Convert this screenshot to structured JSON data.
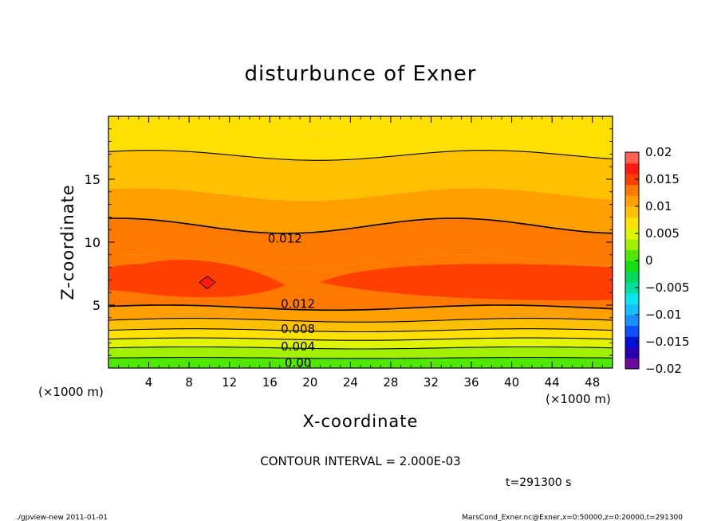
{
  "chart_data": {
    "type": "heatmap",
    "title": "disturbunce of Exner",
    "xlabel": "X-coordinate",
    "ylabel": "Z-coordinate",
    "x_unit_left": "(×1000 m)",
    "x_unit_right": "(×1000 m)",
    "xlim": [
      0,
      50
    ],
    "ylim": [
      0,
      20
    ],
    "x_ticks": [
      4,
      8,
      12,
      16,
      20,
      24,
      28,
      32,
      36,
      40,
      44,
      48
    ],
    "x_tick_labels": [
      "4",
      "8",
      "12",
      "16",
      "20",
      "24",
      "28",
      "32",
      "36",
      "40",
      "44",
      "48"
    ],
    "y_ticks": [
      5,
      10,
      15
    ],
    "y_tick_labels": [
      "5",
      "10",
      "15"
    ],
    "colorbar": {
      "levels": [
        -0.02,
        -0.018,
        -0.016,
        -0.014,
        -0.012,
        -0.01,
        -0.008,
        -0.006,
        -0.004,
        -0.002,
        0,
        0.002,
        0.004,
        0.006,
        0.008,
        0.01,
        0.012,
        0.014,
        0.016,
        0.018,
        0.02
      ],
      "colors": [
        "#6a0aa0",
        "#2a00b0",
        "#0010d8",
        "#1050ff",
        "#1890ff",
        "#14c0ff",
        "#08e4f0",
        "#00e0a0",
        "#00d860",
        "#10e010",
        "#50e800",
        "#a0f000",
        "#e0f400",
        "#ffe000",
        "#ffc000",
        "#ffa000",
        "#ff7800",
        "#ff4000",
        "#ff1a10",
        "#ff6050",
        "#ff9090"
      ],
      "tick_values": [
        0.02,
        0.015,
        0.01,
        0.005,
        0,
        -0.005,
        -0.01,
        -0.015,
        -0.02
      ],
      "tick_labels": [
        "0.02",
        "0.015",
        "0.01",
        "0.005",
        "0",
        "−0.005",
        "−0.01",
        "−0.015",
        "−0.02"
      ]
    },
    "contour_interval": 0.002,
    "contour_labels": [
      {
        "text": "0.012",
        "x": 17.5,
        "z": 10.3
      },
      {
        "text": "0.012",
        "x": 18.8,
        "z": 5.1
      },
      {
        "text": "0.008",
        "x": 18.8,
        "z": 3.1
      },
      {
        "text": "0.004",
        "x": 18.8,
        "z": 1.7
      },
      {
        "text": "0.00",
        "x": 18.8,
        "z": 0.4
      }
    ],
    "field_description_levels": [
      {
        "z_bottom": 0.0,
        "value": 0.001
      },
      {
        "z_bottom": 0.8,
        "value": 0.003
      },
      {
        "z_bottom": 1.6,
        "value": 0.005
      },
      {
        "z_bottom": 2.3,
        "value": 0.007
      },
      {
        "z_bottom": 3.0,
        "value": 0.009
      },
      {
        "z_bottom": 3.8,
        "value": 0.011
      },
      {
        "z_bottom": 4.8,
        "value": 0.013
      },
      {
        "z_bottom": 8.5,
        "value": 0.011
      },
      {
        "z_bottom": 13.5,
        "value": 0.009
      },
      {
        "z_bottom": 18.8,
        "value": 0.007
      }
    ]
  },
  "contour_interval_text": "CONTOUR INTERVAL = 2.000E-03",
  "time_text": "t=291300 s",
  "footer_left": "./gpview-new  2011-01-01",
  "footer_right": "MarsCond_Exner.nc@Exner,x=0:50000,z=0:20000,t=291300"
}
